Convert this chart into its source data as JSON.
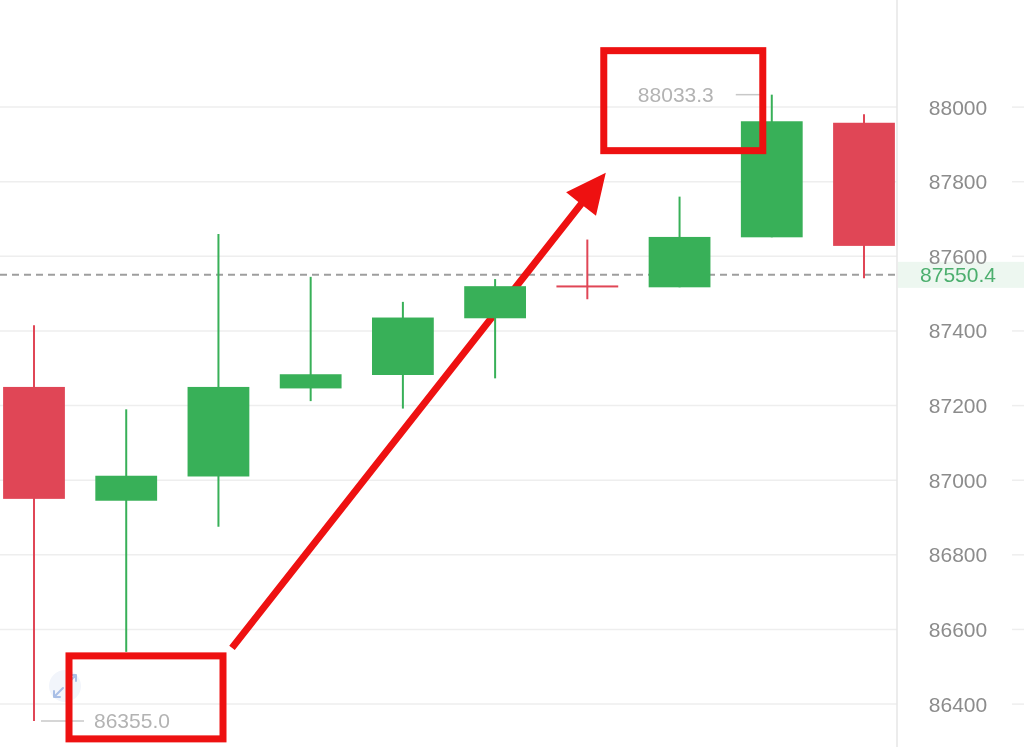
{
  "chart_data": {
    "type": "candlestick",
    "categories": [
      null,
      null,
      null,
      null,
      null,
      null,
      null,
      null,
      null,
      null
    ],
    "ohlc": [
      [
        87250,
        87415,
        86355,
        86950
      ],
      [
        86945,
        87190,
        86540,
        87012
      ],
      [
        87010,
        87660,
        86875,
        87250
      ],
      [
        87246,
        87545,
        87212,
        87284
      ],
      [
        87282,
        87478,
        87192,
        87436
      ],
      [
        87434,
        87539,
        87273,
        87520
      ],
      [
        87522,
        87645,
        87485,
        87518
      ],
      [
        87517,
        87760,
        87517,
        87652
      ],
      [
        87651,
        88033.3,
        87651,
        87962
      ],
      [
        87958,
        87981,
        87541,
        87628
      ]
    ],
    "colors": [
      "#e04656",
      "#38b058",
      "#38b058",
      "#38b058",
      "#38b058",
      "#38b058",
      "#e04656",
      "#38b058",
      "#38b058",
      "#e04656"
    ],
    "ylim": [
      86285,
      88287
    ],
    "yticks": [
      86400,
      86600,
      86800,
      87000,
      87200,
      87400,
      87600,
      87800,
      88000
    ],
    "grid": "y",
    "tick_labels": "y",
    "ref_lines": [
      {
        "axis": "y",
        "value": 87550.4,
        "label": "87550.4",
        "color": "#9e9e9e",
        "line_style": "dashed"
      }
    ],
    "annotations": [
      "88033.3",
      "86355.0"
    ]
  }
}
